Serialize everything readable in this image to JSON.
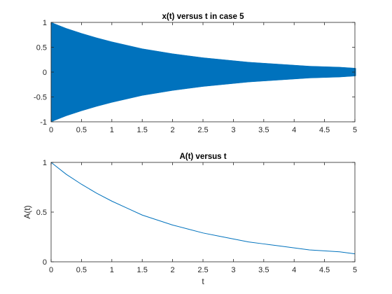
{
  "chart_data": [
    {
      "type": "area",
      "title": "x(t) versus t in case 5",
      "xlabel": "",
      "ylabel": "",
      "xlim": [
        0,
        5
      ],
      "ylim": [
        -1,
        1
      ],
      "xticks": [
        "0",
        "0.5",
        "1",
        "1.5",
        "2",
        "2.5",
        "3",
        "3.5",
        "4",
        "4.5",
        "5"
      ],
      "yticks": [
        "-1",
        "-0.5",
        "0",
        "0.5",
        "1"
      ],
      "grid": false,
      "color": "#0072BD",
      "x": [
        0,
        0.25,
        0.5,
        0.75,
        1,
        1.25,
        1.5,
        1.75,
        2,
        2.25,
        2.5,
        2.75,
        3,
        3.25,
        3.5,
        3.75,
        4,
        4.25,
        4.5,
        4.75,
        5
      ],
      "upper": [
        1,
        0.88,
        0.78,
        0.69,
        0.61,
        0.54,
        0.47,
        0.42,
        0.37,
        0.33,
        0.29,
        0.26,
        0.23,
        0.2,
        0.18,
        0.16,
        0.14,
        0.12,
        0.11,
        0.1,
        0.08
      ],
      "lower": [
        -1,
        -0.88,
        -0.78,
        -0.69,
        -0.61,
        -0.54,
        -0.47,
        -0.42,
        -0.37,
        -0.33,
        -0.29,
        -0.26,
        -0.23,
        -0.2,
        -0.18,
        -0.16,
        -0.14,
        -0.12,
        -0.11,
        -0.1,
        -0.08
      ]
    },
    {
      "type": "line",
      "title": "A(t) versus t",
      "xlabel": "t",
      "ylabel": "A(t)",
      "xlim": [
        0,
        5
      ],
      "ylim": [
        0,
        1
      ],
      "xticks": [
        "0",
        "0.5",
        "1",
        "1.5",
        "2",
        "2.5",
        "3",
        "3.5",
        "4",
        "4.5",
        "5"
      ],
      "yticks": [
        "0",
        "0.5",
        "1"
      ],
      "grid": false,
      "color": "#0072BD",
      "x": [
        0,
        0.25,
        0.5,
        0.75,
        1,
        1.25,
        1.5,
        1.75,
        2,
        2.25,
        2.5,
        2.75,
        3,
        3.25,
        3.5,
        3.75,
        4,
        4.25,
        4.5,
        4.75,
        5
      ],
      "y": [
        1,
        0.88,
        0.78,
        0.69,
        0.61,
        0.54,
        0.47,
        0.42,
        0.37,
        0.33,
        0.29,
        0.26,
        0.23,
        0.2,
        0.18,
        0.16,
        0.14,
        0.12,
        0.11,
        0.1,
        0.08
      ]
    }
  ]
}
